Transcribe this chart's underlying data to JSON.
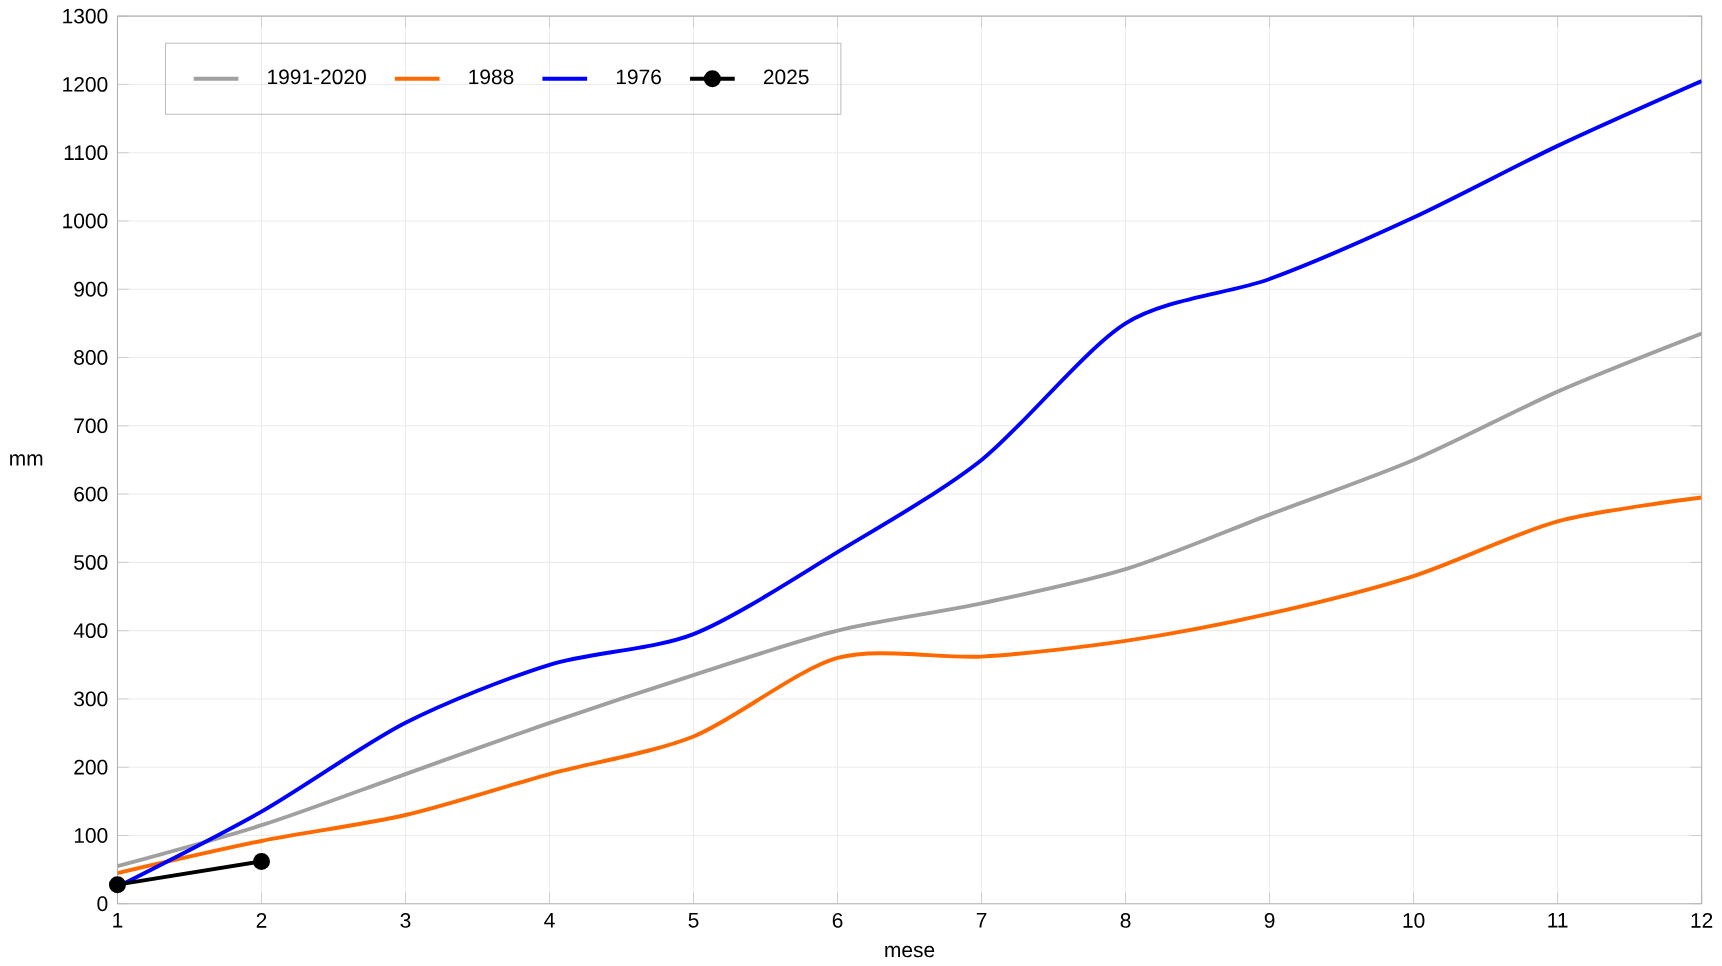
{
  "chart_data": {
    "type": "line",
    "xlabel": "mese",
    "ylabel": "mm",
    "x": [
      1,
      2,
      3,
      4,
      5,
      6,
      7,
      8,
      9,
      10,
      11,
      12
    ],
    "series": [
      {
        "name": "1991-2020",
        "color": "#a0a0a0",
        "marker": "none",
        "values": [
          55,
          115,
          190,
          265,
          335,
          400,
          440,
          490,
          570,
          650,
          750,
          835
        ]
      },
      {
        "name": "1988",
        "color": "#ff6a00",
        "marker": "none",
        "values": [
          45,
          92,
          130,
          190,
          245,
          360,
          362,
          385,
          425,
          480,
          560,
          595
        ]
      },
      {
        "name": "1976",
        "color": "#0000ff",
        "marker": "none",
        "values": [
          25,
          135,
          265,
          350,
          395,
          515,
          650,
          850,
          915,
          1005,
          1110,
          1205
        ]
      },
      {
        "name": "2025",
        "color": "#000000",
        "marker": "circle",
        "values": [
          28,
          62,
          null,
          null,
          null,
          null,
          null,
          null,
          null,
          null,
          null,
          null
        ]
      }
    ],
    "xlim": [
      1,
      12
    ],
    "ylim": [
      0,
      1300
    ],
    "xticks": [
      1,
      2,
      3,
      4,
      5,
      6,
      7,
      8,
      9,
      10,
      11,
      12
    ],
    "yticks": [
      0,
      100,
      200,
      300,
      400,
      500,
      600,
      700,
      800,
      900,
      1000,
      1100,
      1200,
      1300
    ],
    "grid": true,
    "legend": "top left"
  }
}
